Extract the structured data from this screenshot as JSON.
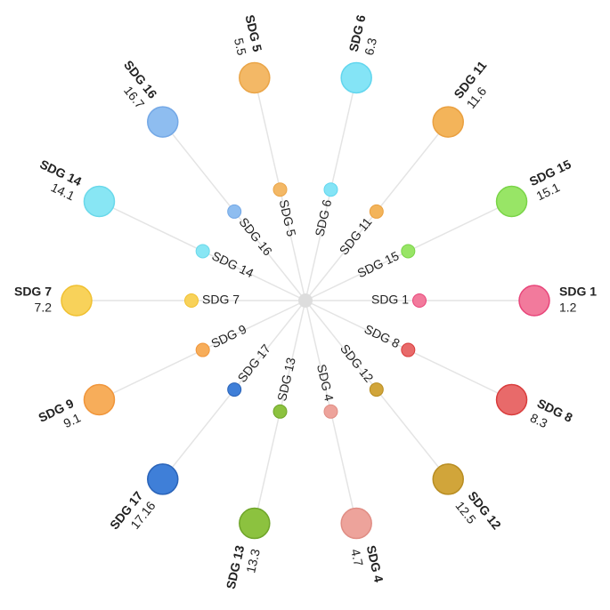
{
  "nodes": [
    {
      "name": "SDG 1",
      "value": "1.2",
      "color": "#f27a9c",
      "stroke": "#e8457a"
    },
    {
      "name": "SDG 8",
      "value": "8.3",
      "color": "#e86a6a",
      "stroke": "#d93c3c"
    },
    {
      "name": "SDG 12",
      "value": "12.5",
      "color": "#d1a53a",
      "stroke": "#b88d22"
    },
    {
      "name": "SDG 4",
      "value": "4.7",
      "color": "#eda39b",
      "stroke": "#e08d84"
    },
    {
      "name": "SDG 13",
      "value": "13.3",
      "color": "#8cc23f",
      "stroke": "#6fa52a"
    },
    {
      "name": "SDG 17",
      "value": "17.16",
      "color": "#3f7fd8",
      "stroke": "#2a63b8"
    },
    {
      "name": "SDG 9",
      "value": "9.1",
      "color": "#f7ad5a",
      "stroke": "#f0953a"
    },
    {
      "name": "SDG 7",
      "value": "7.2",
      "color": "#f8d25a",
      "stroke": "#f0c030"
    },
    {
      "name": "SDG 14",
      "value": "14.1",
      "color": "#88e6f4",
      "stroke": "#6ad8ea"
    },
    {
      "name": "SDG 16",
      "value": "16.7",
      "color": "#8ebdf0",
      "stroke": "#74a8e6"
    },
    {
      "name": "SDG 5",
      "value": "5.5",
      "color": "#f3b866",
      "stroke": "#eaa548"
    },
    {
      "name": "SDG 6",
      "value": "6.3",
      "color": "#84e4f6",
      "stroke": "#62d6ee"
    },
    {
      "name": "SDG 11",
      "value": "11.6",
      "color": "#f3b45a",
      "stroke": "#eaa040"
    },
    {
      "name": "SDG 15",
      "value": "15.1",
      "color": "#98e566",
      "stroke": "#7ad448"
    }
  ]
}
